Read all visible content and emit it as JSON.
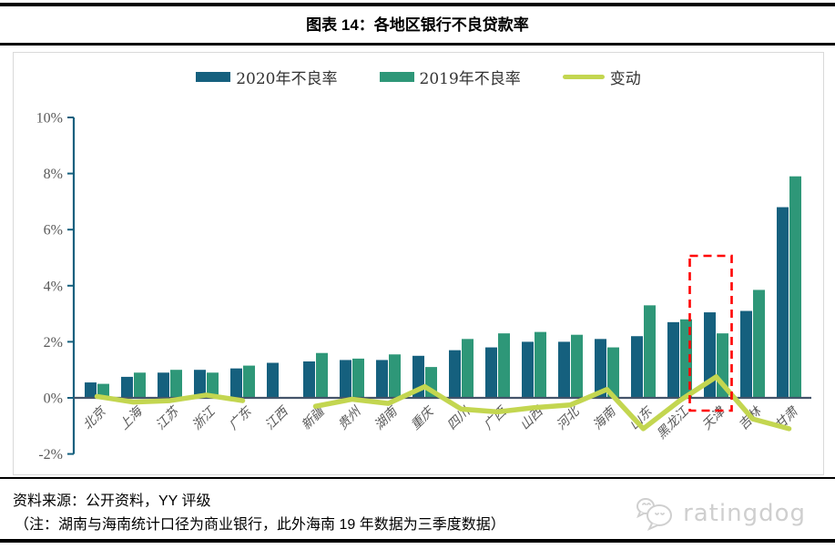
{
  "header": {
    "title": "图表 14：各地区银行不良贷款率"
  },
  "legend": {
    "items": [
      {
        "label": "2020年不良率",
        "color": "#15607E",
        "kind": "bar"
      },
      {
        "label": "2019年不良率",
        "color": "#2E9778",
        "kind": "bar"
      },
      {
        "label": "变动",
        "color": "#C3D650",
        "kind": "line"
      }
    ]
  },
  "chart_data": {
    "type": "bar",
    "title": "各地区银行不良贷款率",
    "categories": [
      "北京",
      "上海",
      "江苏",
      "浙江",
      "广东",
      "江西",
      "新疆",
      "贵州",
      "湖南",
      "重庆",
      "四川",
      "广西",
      "山西",
      "河北",
      "海南",
      "山东",
      "黑龙江",
      "天津",
      "吉林",
      "甘肃"
    ],
    "series": [
      {
        "name": "2020年不良率",
        "kind": "bar",
        "color": "#15607E",
        "values": [
          0.55,
          0.75,
          0.9,
          1.0,
          1.05,
          1.25,
          1.3,
          1.35,
          1.35,
          1.5,
          1.7,
          1.8,
          2.0,
          2.0,
          2.1,
          2.2,
          2.7,
          3.05,
          3.1,
          6.8
        ]
      },
      {
        "name": "2019年不良率",
        "kind": "bar",
        "color": "#2E9778",
        "values": [
          0.5,
          0.9,
          1.0,
          0.9,
          1.15,
          null,
          1.6,
          1.4,
          1.55,
          1.1,
          2.1,
          2.3,
          2.35,
          2.25,
          1.8,
          3.3,
          2.8,
          2.3,
          3.85,
          7.9
        ]
      },
      {
        "name": "变动",
        "kind": "line",
        "color": "#C3D650",
        "values": [
          0.05,
          -0.15,
          -0.1,
          0.1,
          -0.1,
          null,
          -0.3,
          -0.05,
          -0.2,
          0.4,
          -0.4,
          -0.5,
          -0.35,
          -0.25,
          0.3,
          -1.1,
          -0.1,
          0.75,
          -0.75,
          -1.1
        ]
      }
    ],
    "ylim": [
      -2,
      10
    ],
    "yticks": [
      "10%",
      "8%",
      "6%",
      "4%",
      "2%",
      "0%",
      "-2%"
    ],
    "xlabel": "",
    "ylabel": "",
    "grid": false,
    "legend_position": "top",
    "x_label_rotation": 45,
    "axis_color": "#15607E",
    "zero_line_color": "#44546A",
    "tick_label_color": "#595959",
    "highlight": {
      "category": "天津",
      "style": "red-dashed-box",
      "color": "#FF0000"
    }
  },
  "footer": {
    "source": "资料来源：公开资料，YY 评级",
    "note": "（注：湖南与海南统计口径为商业银行，此外海南 19 年数据为三季度数据）",
    "logo_text": "ratingdog"
  }
}
